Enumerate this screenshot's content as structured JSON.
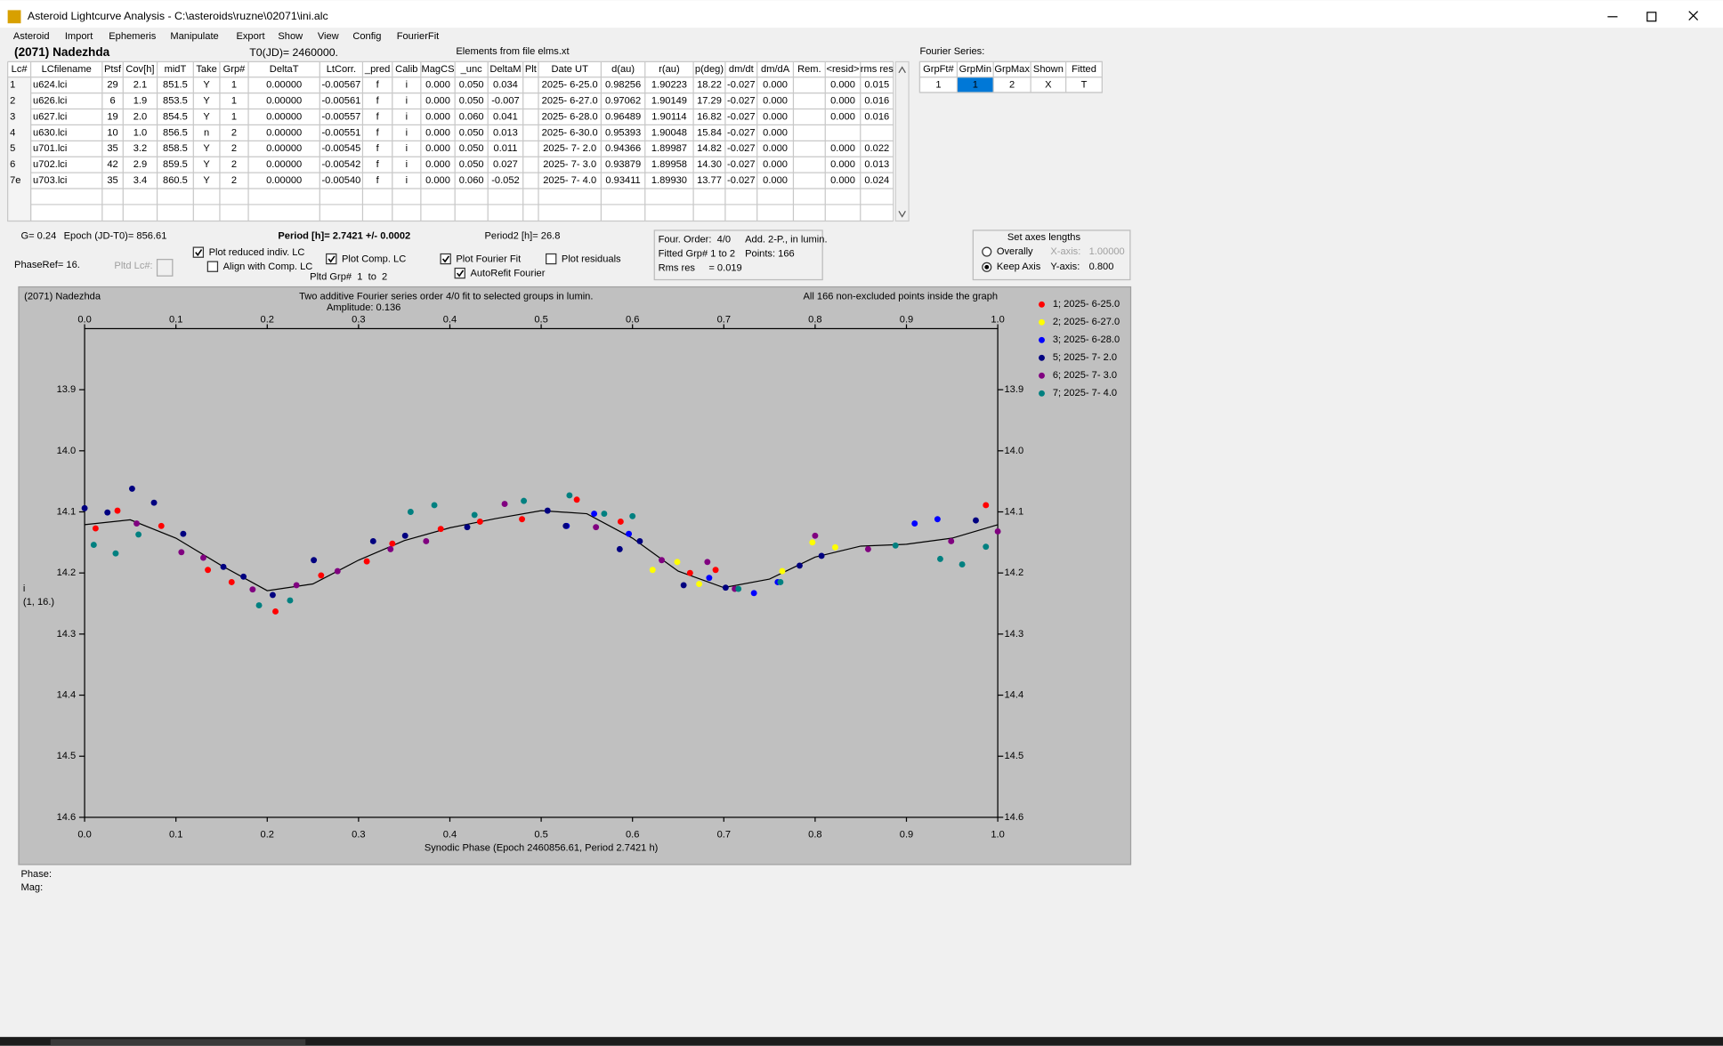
{
  "window": {
    "title": "Asteroid Lightcurve Analysis - C:\\asteroids\\ruzne\\02071\\ini.alc",
    "menu": [
      "Asteroid",
      "Import",
      "Ephemeris",
      "Manipulate",
      "Export",
      "Show",
      "View",
      "Config",
      "FourierFit"
    ]
  },
  "header": {
    "object": "(2071) Nadezhda",
    "t0": "T0(JD)= 2460000.",
    "elements": "Elements from file elms.xt",
    "fourier_label": "Fourier Series:"
  },
  "table": {
    "columns": [
      "Lc#",
      "LCfilename",
      "Ptsf",
      "Cov[h]",
      "midT",
      "Take",
      "Grp#",
      "DeltaT",
      "LtCorr.",
      "_pred",
      "Calib",
      "MagCS",
      "_unc",
      "DeltaM",
      "Plt",
      "Date UT",
      "d(au)",
      "r(au)",
      "p(deg)",
      "dm/dt",
      "dm/dA",
      "Rem.",
      "<resid>",
      "rms res"
    ],
    "rows": [
      [
        "1",
        "u624.lci",
        "29",
        "2.1",
        "851.5",
        "Y",
        "1",
        "0.00000",
        "-0.00567",
        "f",
        "i",
        "0.000",
        "0.050",
        "0.034",
        null,
        "2025- 6-25.0",
        "0.98256",
        "1.90223",
        "18.22",
        "-0.027",
        "0.000",
        null,
        "0.000",
        "0.015"
      ],
      [
        "2",
        "u626.lci",
        "6",
        "1.9",
        "853.5",
        "Y",
        "1",
        "0.00000",
        "-0.00561",
        "f",
        "i",
        "0.000",
        "0.050",
        "-0.007",
        null,
        "2025- 6-27.0",
        "0.97062",
        "1.90149",
        "17.29",
        "-0.027",
        "0.000",
        null,
        "0.000",
        "0.016"
      ],
      [
        "3",
        "u627.lci",
        "19",
        "2.0",
        "854.5",
        "Y",
        "1",
        "0.00000",
        "-0.00557",
        "f",
        "i",
        "0.000",
        "0.060",
        "0.041",
        null,
        "2025- 6-28.0",
        "0.96489",
        "1.90114",
        "16.82",
        "-0.027",
        "0.000",
        null,
        "0.000",
        "0.016"
      ],
      [
        "4",
        "u630.lci",
        "10",
        "1.0",
        "856.5",
        "n",
        "2",
        "0.00000",
        "-0.00551",
        "f",
        "i",
        "0.000",
        "0.050",
        "0.013",
        null,
        "2025- 6-30.0",
        "0.95393",
        "1.90048",
        "15.84",
        "-0.027",
        "0.000",
        null,
        null,
        null
      ],
      [
        "5",
        "u701.lci",
        "35",
        "3.2",
        "858.5",
        "Y",
        "2",
        "0.00000",
        "-0.00545",
        "f",
        "i",
        "0.000",
        "0.050",
        "0.011",
        null,
        "2025- 7- 2.0",
        "0.94366",
        "1.89987",
        "14.82",
        "-0.027",
        "0.000",
        null,
        "0.000",
        "0.022"
      ],
      [
        "6",
        "u702.lci",
        "42",
        "2.9",
        "859.5",
        "Y",
        "2",
        "0.00000",
        "-0.00542",
        "f",
        "i",
        "0.000",
        "0.050",
        "0.027",
        null,
        "2025- 7- 3.0",
        "0.93879",
        "1.89958",
        "14.30",
        "-0.027",
        "0.000",
        null,
        "0.000",
        "0.013"
      ],
      [
        "7e",
        "u703.lci",
        "35",
        "3.4",
        "860.5",
        "Y",
        "2",
        "0.00000",
        "-0.00540",
        "f",
        "i",
        "0.000",
        "0.060",
        "-0.052",
        null,
        "2025- 7- 4.0",
        "0.93411",
        "1.89930",
        "13.77",
        "-0.027",
        "0.000",
        null,
        "0.000",
        "0.024"
      ]
    ]
  },
  "fourier_table": {
    "columns": [
      "GrpFt#",
      "GrpMin",
      "GrpMax",
      "Shown",
      "Fitted"
    ],
    "rows": [
      [
        "1",
        "1",
        "2",
        "X",
        "T"
      ]
    ]
  },
  "controls": {
    "g": "G= 0.24",
    "epoch": "Epoch (JD-T0)= 856.61",
    "period": "Period [h]= 2.7421 +/- 0.0002",
    "period2": "Period2 [h]= 26.8",
    "phase_ref": "PhaseRef= 16.",
    "pltd_lc": "Pltd Lc#:",
    "pltd_grp": "Pltd Grp#  1  to  2",
    "checkboxes": [
      {
        "label": "Plot reduced indiv. LC",
        "checked": true
      },
      {
        "label": "Align with Comp. LC",
        "checked": false
      },
      {
        "label": "Plot Comp. LC",
        "checked": true
      },
      {
        "label": "Plot Fourier Fit",
        "checked": true
      },
      {
        "label": "AutoRefit Fourier",
        "checked": true
      },
      {
        "label": "Plot residuals",
        "checked": false
      }
    ]
  },
  "info_box": [
    "Four. Order:  4/0",
    "Add. 2-P., in lumin.",
    "Fitted Grp# 1 to 2",
    "Points: 166",
    "Rms res     = 0.019"
  ],
  "axes_box": {
    "title": "Set axes lengths",
    "options": [
      {
        "label": "Overally",
        "selected": false
      },
      {
        "label": "Keep Axis",
        "selected": true
      }
    ],
    "x_axis": {
      "label": "X-axis:",
      "value": "1.00000",
      "enabled": false
    },
    "y_axis": {
      "label": "Y-axis:",
      "value": "0.800",
      "enabled": true
    }
  },
  "chart_data": {
    "type": "scatter",
    "corner_label": "(2071) Nadezhda",
    "title": "Two additive Fourier series order 4/0 fit to selected groups in lumin.",
    "subtitle": "Amplitude: 0.136",
    "note": "All 166 non-excluded points inside the graph",
    "ylabel": "i",
    "ylabel2": "(1, 16.)",
    "xlabel": "Synodic Phase (Epoch 2460856.61, Period 2.7421 h)",
    "xlim": [
      0,
      1
    ],
    "ylim": [
      13.8,
      14.6
    ],
    "y_reversed": true,
    "xticks": [
      {
        "value": 0,
        "label": "0.0"
      },
      0.1,
      0.2,
      0.3,
      0.4,
      0.5,
      0.6,
      0.7,
      0.8,
      0.9,
      {
        "value": 1,
        "label": "1.0"
      }
    ],
    "yticks": [
      13.9,
      {
        "value": 14,
        "label": "14.0"
      },
      14.1,
      14.2,
      14.3,
      14.4,
      14.5,
      14.6
    ],
    "series": [
      {
        "name": "1; 2025- 6-25.0",
        "color": "#ff0000",
        "x": [
          0.012,
          0.036,
          0.084,
          0.135,
          0.161,
          0.209,
          0.259,
          0.309,
          0.337,
          0.39,
          0.433,
          0.479,
          0.539,
          0.587,
          0.663,
          0.691,
          0.987
        ],
        "values": [
          14.127,
          14.098,
          14.123,
          14.195,
          14.215,
          14.263,
          14.204,
          14.181,
          14.152,
          14.128,
          14.116,
          14.112,
          14.08,
          14.116,
          14.2,
          14.195,
          14.089
        ]
      },
      {
        "name": "2; 2025- 6-27.0",
        "color": "#ffff00",
        "x": [
          0.622,
          0.649,
          0.673,
          0.764,
          0.797,
          0.822
        ],
        "values": [
          14.195,
          14.182,
          14.218,
          14.197,
          14.15,
          14.158
        ]
      },
      {
        "name": "3; 2025- 6-28.0",
        "color": "#0000ff",
        "x": [
          0.528,
          0.558,
          0.596,
          0.684,
          0.733,
          0.759,
          0.909,
          0.934
        ],
        "values": [
          14.123,
          14.103,
          14.136,
          14.208,
          14.233,
          14.215,
          14.119,
          14.112
        ]
      },
      {
        "name": "5; 2025- 7- 2.0",
        "color": "#000080",
        "x": [
          0,
          0.025,
          0.052,
          0.076,
          0.108,
          0.152,
          0.174,
          0.206,
          0.251,
          0.316,
          0.351,
          0.419,
          0.507,
          0.527,
          0.586,
          0.608,
          0.656,
          0.702,
          0.783,
          0.807,
          0.976
        ],
        "values": [
          14.094,
          14.101,
          14.062,
          14.085,
          14.136,
          14.19,
          14.206,
          14.236,
          14.179,
          14.148,
          14.139,
          14.125,
          14.098,
          14.123,
          14.161,
          14.148,
          14.22,
          14.224,
          14.188,
          14.172,
          14.114
        ]
      },
      {
        "name": "6; 2025- 7- 3.0",
        "color": "#800080",
        "x": [
          0.057,
          0.106,
          0.13,
          0.184,
          0.232,
          0.277,
          0.335,
          0.374,
          0.46,
          0.56,
          0.632,
          0.682,
          0.712,
          0.8,
          0.858,
          0.949,
          1
        ],
        "values": [
          14.119,
          14.166,
          14.175,
          14.227,
          14.22,
          14.197,
          14.161,
          14.148,
          14.087,
          14.125,
          14.179,
          14.182,
          14.226,
          14.139,
          14.161,
          14.148,
          14.132
        ]
      },
      {
        "name": "7; 2025- 7- 4.0",
        "color": "#008080",
        "x": [
          0.01,
          0.034,
          0.059,
          0.191,
          0.225,
          0.357,
          0.383,
          0.427,
          0.481,
          0.531,
          0.569,
          0.6,
          0.716,
          0.762,
          0.888,
          0.937,
          0.961,
          0.987
        ],
        "values": [
          14.154,
          14.168,
          14.137,
          14.253,
          14.245,
          14.1,
          14.089,
          14.105,
          14.082,
          14.073,
          14.103,
          14.107,
          14.226,
          14.215,
          14.155,
          14.177,
          14.186,
          14.157
        ]
      }
    ],
    "fit": {
      "color": "#000000",
      "x": [
        0,
        0.05,
        0.1,
        0.15,
        0.2,
        0.25,
        0.3,
        0.35,
        0.4,
        0.45,
        0.5,
        0.55,
        0.6,
        0.65,
        0.7,
        0.75,
        0.8,
        0.85,
        0.9,
        0.95,
        1
      ],
      "values": [
        14.121,
        14.113,
        14.143,
        14.188,
        14.229,
        14.218,
        14.179,
        14.147,
        14.126,
        14.111,
        14.098,
        14.103,
        14.143,
        14.197,
        14.224,
        14.21,
        14.174,
        14.156,
        14.153,
        14.143,
        14.121
      ]
    }
  },
  "status": {
    "phase": "Phase:",
    "mag": "Mag:"
  }
}
